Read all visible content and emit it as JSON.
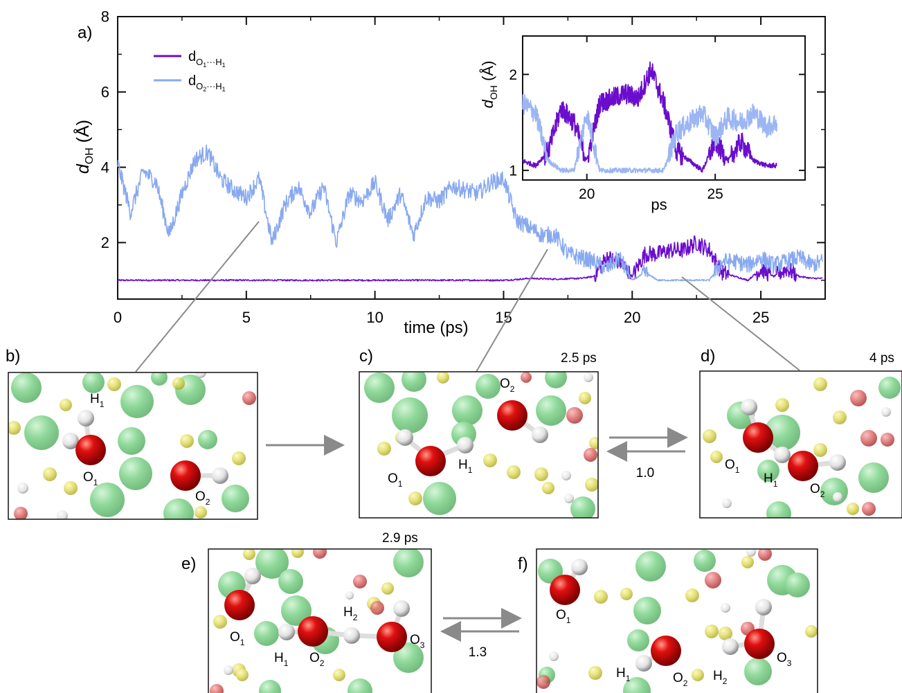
{
  "figure": {
    "panel_labels": {
      "a": "a)",
      "b": "b)",
      "c": "c)",
      "d": "d)",
      "e": "e)",
      "f": "f)"
    },
    "times": {
      "c": "2.5 ps",
      "d": "4 ps",
      "e": "2.9 ps"
    },
    "rates": {
      "cd": "1.0",
      "ef": "1.3"
    }
  },
  "chart_data": [
    {
      "type": "line",
      "xlabel": "time (ps)",
      "ylabel": "d_OH (Å)",
      "xlim": [
        0,
        27.5
      ],
      "ylim": [
        0.5,
        8
      ],
      "xticks": [
        0,
        5,
        10,
        15,
        20,
        25
      ],
      "yticks": [
        2,
        4,
        6,
        8
      ],
      "grid": false,
      "legend_position": "top-left",
      "series": [
        {
          "name": "dO1···H1",
          "color": "#6a0dcc",
          "x": [
            0,
            5,
            10,
            15,
            15.5,
            16,
            17,
            18,
            18.5,
            19,
            19.5,
            20,
            20.5,
            21,
            21.5,
            22,
            22.5,
            23,
            23.5,
            24,
            24.5,
            25,
            25.5,
            26,
            26.5,
            27,
            27.4
          ],
          "y": [
            1.0,
            1.0,
            1.0,
            1.0,
            1.02,
            1.05,
            1.03,
            1.05,
            1.1,
            1.6,
            1.5,
            1.1,
            1.7,
            1.7,
            1.8,
            1.8,
            2.0,
            1.8,
            1.2,
            1.1,
            1.0,
            1.3,
            1.1,
            1.3,
            1.1,
            1.05,
            1.05
          ]
        },
        {
          "name": "dO2···H1",
          "color": "#88a9f0",
          "x": [
            0,
            0.5,
            1,
            1.5,
            2,
            2.5,
            3,
            3.5,
            4,
            4.5,
            5,
            5.5,
            6,
            6.5,
            7,
            7.5,
            8,
            8.5,
            9,
            9.5,
            10,
            10.5,
            11,
            11.5,
            12,
            12.5,
            13,
            13.5,
            14,
            14.5,
            15,
            15.5,
            16,
            16.5,
            17,
            17.5,
            18,
            18.5,
            19,
            19.5,
            20,
            20.5,
            21,
            21.5,
            22,
            22.5,
            23,
            23.5,
            24,
            24.5,
            25,
            25.5,
            26,
            26.5,
            27,
            27.4
          ],
          "y": [
            4.1,
            2.8,
            3.9,
            3.6,
            2.2,
            3.3,
            4.2,
            4.4,
            3.7,
            3.4,
            3.2,
            3.7,
            2.0,
            3.0,
            3.5,
            2.8,
            3.5,
            2.0,
            3.3,
            3.1,
            3.6,
            2.6,
            3.3,
            2.2,
            3.2,
            3.1,
            3.5,
            3.4,
            3.3,
            3.6,
            3.7,
            2.6,
            2.4,
            2.2,
            2.2,
            1.7,
            1.6,
            1.5,
            1.3,
            1.6,
            1.0,
            1.2,
            1.0,
            1.0,
            1.0,
            1.0,
            1.0,
            1.5,
            1.5,
            1.4,
            1.6,
            1.4,
            1.5,
            1.6,
            1.4,
            1.5
          ]
        }
      ]
    },
    {
      "type": "line",
      "inset": true,
      "xlabel": "ps",
      "ylabel": "d_OH (Å)",
      "xlim": [
        17.5,
        28.5
      ],
      "ylim": [
        0.9,
        2.4
      ],
      "xticks": [
        20,
        25
      ],
      "yticks": [
        1,
        2
      ],
      "series": [
        {
          "name": "dO1···H1",
          "color": "#6a0dcc",
          "x": [
            17.5,
            18,
            18.5,
            19,
            19.5,
            20,
            20.5,
            21,
            21.5,
            22,
            22.5,
            23,
            23.5,
            24,
            24.5,
            25,
            25.5,
            26,
            26.5,
            27,
            27.4
          ],
          "y": [
            1.1,
            1.05,
            1.2,
            1.65,
            1.5,
            1.1,
            1.7,
            1.75,
            1.8,
            1.75,
            2.05,
            1.7,
            1.2,
            1.1,
            1.0,
            1.3,
            1.1,
            1.3,
            1.1,
            1.05,
            1.05
          ]
        },
        {
          "name": "dO2···H1",
          "color": "#9cb6f4",
          "x": [
            17.5,
            18,
            18.5,
            19,
            19.5,
            20,
            20.5,
            21,
            21.5,
            22,
            22.5,
            23,
            23.5,
            24,
            24.5,
            25,
            25.5,
            26,
            26.5,
            27,
            27.4
          ],
          "y": [
            1.7,
            1.6,
            1.1,
            1.0,
            1.0,
            1.6,
            1.0,
            1.0,
            1.0,
            1.0,
            1.0,
            1.0,
            1.4,
            1.5,
            1.6,
            1.35,
            1.55,
            1.5,
            1.6,
            1.45,
            1.5
          ]
        }
      ]
    }
  ],
  "snapshots": [
    {
      "id": "b",
      "labels": [
        "H1",
        "O1",
        "O2"
      ]
    },
    {
      "id": "c",
      "labels": [
        "O2",
        "O1",
        "H1"
      ]
    },
    {
      "id": "d",
      "labels": [
        "O1",
        "H1",
        "O2"
      ]
    },
    {
      "id": "e",
      "labels": [
        "O1",
        "H1",
        "O2",
        "H2",
        "O3"
      ]
    },
    {
      "id": "f",
      "labels": [
        "O1",
        "H1",
        "O2",
        "H2",
        "O3"
      ]
    }
  ],
  "colors": {
    "oxygen": "#e00000",
    "hydrogen": "#f2f2f2",
    "green_atom": "#3cbf4e",
    "yellow_atom": "#d6d23a",
    "arrow": "#888888"
  }
}
